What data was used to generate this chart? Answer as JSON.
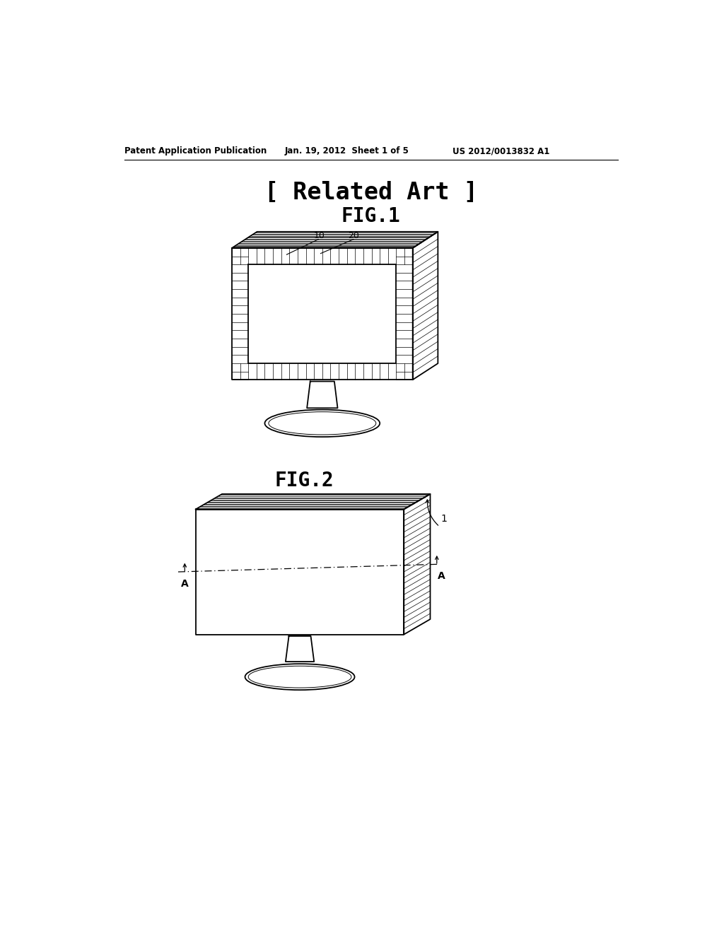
{
  "bg_color": "#ffffff",
  "header_left": "Patent Application Publication",
  "header_mid": "Jan. 19, 2012  Sheet 1 of 5",
  "header_right": "US 2012/0013832 A1",
  "related_art_text": "[ Related Art ]",
  "fig1_label": "FIG.1",
  "fig2_label": "FIG.2",
  "label_10": "10",
  "label_20": "20",
  "label_1": "1",
  "label_A": "A",
  "line_lw": 1.3,
  "hatch_lw": 0.5
}
